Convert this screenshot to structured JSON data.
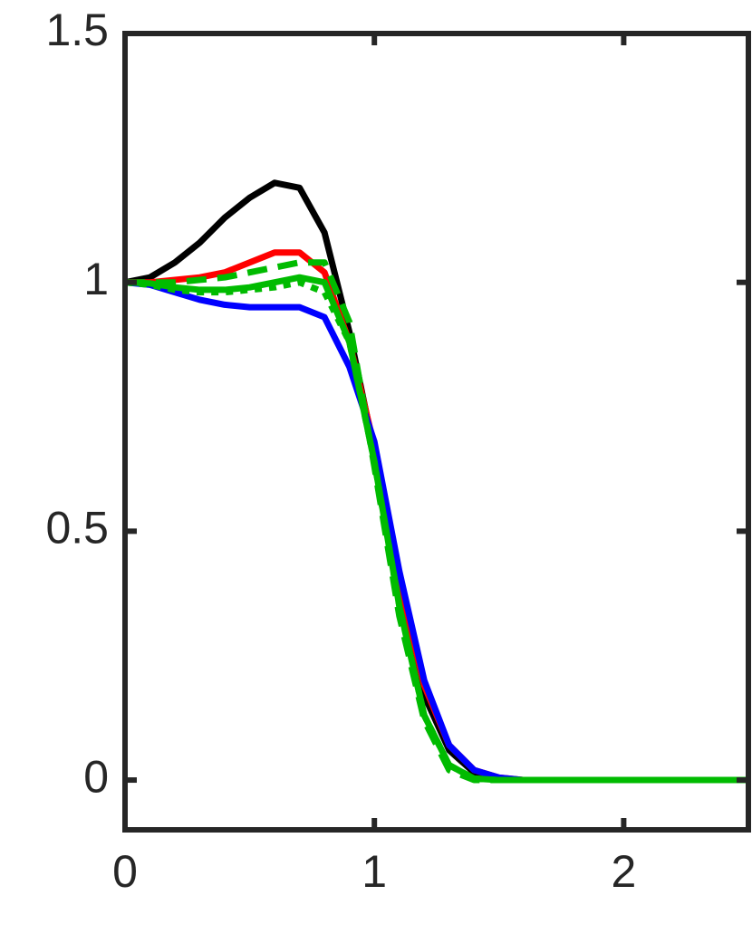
{
  "chart_data": {
    "type": "line",
    "x": [
      0,
      0.1,
      0.2,
      0.3,
      0.4,
      0.5,
      0.6,
      0.7,
      0.8,
      0.9,
      1.0,
      1.1,
      1.2,
      1.3,
      1.4,
      1.5,
      1.6,
      1.7,
      1.8,
      1.9,
      2.0,
      2.1,
      2.2,
      2.3,
      2.4,
      2.5
    ],
    "series": [
      {
        "color": "#000000",
        "linestyle": "solid",
        "values": [
          1,
          1.01,
          1.04,
          1.08,
          1.13,
          1.17,
          1.2,
          1.19,
          1.1,
          0.9,
          0.66,
          0.38,
          0.17,
          0.06,
          0.015,
          0.003,
          0,
          0,
          0,
          0,
          0,
          0,
          0,
          0,
          0,
          0
        ]
      },
      {
        "color": "#ff0000",
        "linestyle": "solid",
        "values": [
          1,
          1,
          1.005,
          1.01,
          1.02,
          1.04,
          1.06,
          1.06,
          1.02,
          0.88,
          0.67,
          0.4,
          0.19,
          0.07,
          0.02,
          0.005,
          0,
          0,
          0,
          0,
          0,
          0,
          0,
          0,
          0,
          0
        ]
      },
      {
        "color": "#0000ff",
        "linestyle": "solid",
        "values": [
          1,
          0.995,
          0.98,
          0.965,
          0.955,
          0.95,
          0.95,
          0.95,
          0.93,
          0.83,
          0.68,
          0.42,
          0.2,
          0.07,
          0.02,
          0.005,
          0,
          0,
          0,
          0,
          0,
          0,
          0,
          0,
          0,
          0
        ]
      },
      {
        "color": "#00bb00",
        "linestyle": "solid",
        "values": [
          1,
          0.998,
          0.99,
          0.985,
          0.985,
          0.99,
          1.0,
          1.01,
          1.0,
          0.88,
          0.64,
          0.35,
          0.13,
          0.03,
          0.003,
          0,
          0,
          0,
          0,
          0,
          0,
          0,
          0,
          0,
          0,
          0
        ]
      },
      {
        "color": "#00bb00",
        "linestyle": "dashed",
        "values": [
          1,
          1,
          1,
          1.005,
          1.01,
          1.02,
          1.03,
          1.04,
          1.04,
          0.92,
          0.63,
          0.33,
          0.12,
          0.02,
          0,
          0,
          0,
          0,
          0,
          0,
          0,
          0,
          0,
          0,
          0,
          0
        ]
      },
      {
        "color": "#00bb00",
        "linestyle": "dotted",
        "values": [
          1,
          0.995,
          0.985,
          0.98,
          0.98,
          0.985,
          0.99,
          1.0,
          0.98,
          0.88,
          0.64,
          0.35,
          0.13,
          0.03,
          0.003,
          0,
          0,
          0,
          0,
          0,
          0,
          0,
          0,
          0,
          0,
          0
        ]
      }
    ],
    "xlim": [
      0,
      2.5
    ],
    "ylim": [
      -0.1,
      1.5
    ],
    "xticks": [
      0,
      1,
      2
    ],
    "yticks": [
      0,
      0.5,
      1,
      1.5
    ]
  }
}
